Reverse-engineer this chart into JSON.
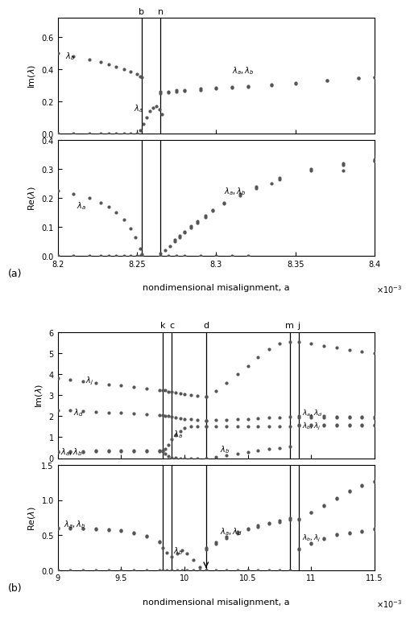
{
  "panel_a": {
    "vline_b": 0.008253,
    "vline_n": 0.008265,
    "xlabel": "nondimensional misalignment, a",
    "exp_label": "x 10⁻³",
    "label_a": "(a)",
    "top": {
      "ylabel": "Im(λ)",
      "ylim": [
        0,
        0.72
      ],
      "yticks": [
        0,
        0.2,
        0.4,
        0.6
      ],
      "xlim": [
        0.0082,
        0.0084
      ],
      "xtick_vals": [
        0.0082,
        0.00825,
        0.0083,
        0.00835,
        0.0084
      ],
      "xtick_labels": [
        "8.2",
        "8.25",
        "8.3",
        "8.35",
        "8.4"
      ]
    },
    "bot": {
      "ylabel": "Re(λ)",
      "ylim": [
        0,
        0.4
      ],
      "yticks": [
        0,
        0.1,
        0.2,
        0.3,
        0.4
      ],
      "xlim": [
        0.0082,
        0.0084
      ],
      "xtick_vals": [
        0.0082,
        0.00825,
        0.0083,
        0.00835,
        0.0084
      ],
      "xtick_labels": [
        "8.2",
        "8.25",
        "8.3",
        "8.35",
        "8.4"
      ]
    }
  },
  "panel_b": {
    "vline_k": 0.00983,
    "vline_c": 0.0099,
    "vline_d": 0.01017,
    "vline_m": 0.01083,
    "vline_j": 0.0109,
    "xlabel": "nondimensional misalignment, a",
    "exp_label": "x 10⁻³",
    "label_b": "(b)",
    "top": {
      "ylabel": "Im(λ)",
      "ylim": [
        0,
        6
      ],
      "yticks": [
        0,
        1,
        2,
        3,
        4,
        5,
        6
      ],
      "xlim": [
        0.009,
        0.0115
      ],
      "xtick_vals": [
        0.009,
        0.0095,
        0.01,
        0.0105,
        0.011,
        0.0115
      ],
      "xtick_labels": [
        "9",
        "9.5",
        "10",
        "10.5",
        "11",
        "11.5"
      ]
    },
    "bot": {
      "ylabel": "Re(λ)",
      "ylim": [
        0,
        1.5
      ],
      "yticks": [
        0,
        0.5,
        1.0,
        1.5
      ],
      "xlim": [
        0.009,
        0.0115
      ],
      "xtick_vals": [
        0.009,
        0.0095,
        0.01,
        0.0105,
        0.011,
        0.0115
      ],
      "xtick_labels": [
        "9",
        "9.5",
        "10",
        "10.5",
        "11",
        "11.5"
      ]
    }
  }
}
